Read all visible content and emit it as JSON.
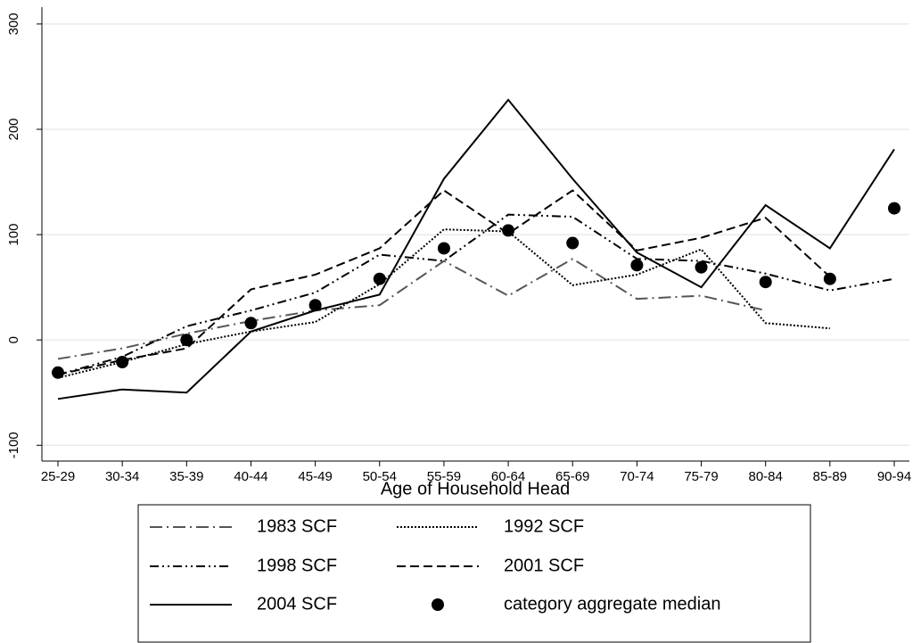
{
  "chart_data": {
    "type": "line",
    "x_label": "Age of Household Head",
    "categories": [
      "25-29",
      "30-34",
      "35-39",
      "40-44",
      "45-49",
      "50-54",
      "55-59",
      "60-64",
      "65-69",
      "70-74",
      "75-79",
      "80-84",
      "85-89",
      "90-94"
    ],
    "ylim": [
      -115,
      316
    ],
    "yticks": [
      -100,
      0,
      100,
      200,
      300
    ],
    "grid": true,
    "series": [
      {
        "name": "1983 SCF",
        "color": "#555555",
        "style": "dash-dot",
        "values": [
          -18,
          -8,
          6,
          18,
          28,
          33,
          75,
          42,
          77,
          39,
          42,
          28,
          null,
          null
        ]
      },
      {
        "name": "1992 SCF",
        "color": "#000000",
        "style": "dotted",
        "values": [
          -36,
          -21,
          -4,
          8,
          17,
          53,
          105,
          103,
          52,
          62,
          86,
          16,
          11,
          null
        ]
      },
      {
        "name": "1998 SCF",
        "color": "#000000",
        "style": "dash-dot-dot",
        "values": [
          -33,
          -16,
          13,
          28,
          45,
          81,
          75,
          119,
          117,
          77,
          75,
          63,
          47,
          58
        ]
      },
      {
        "name": "2001 SCF",
        "color": "#000000",
        "style": "dashed",
        "values": [
          -33,
          -19,
          -8,
          48,
          62,
          87,
          142,
          101,
          142,
          85,
          97,
          116,
          60,
          null
        ]
      },
      {
        "name": "2004 SCF",
        "color": "#000000",
        "style": "solid",
        "values": [
          -56,
          -47,
          -50,
          8,
          28,
          43,
          153,
          228,
          153,
          83,
          50,
          128,
          87,
          181
        ]
      },
      {
        "name": "category aggregate median",
        "color": "#000000",
        "style": "markers",
        "values": [
          -31,
          -21,
          0,
          16,
          33,
          58,
          87,
          104,
          92,
          71,
          69,
          55,
          58,
          125
        ]
      }
    ]
  }
}
